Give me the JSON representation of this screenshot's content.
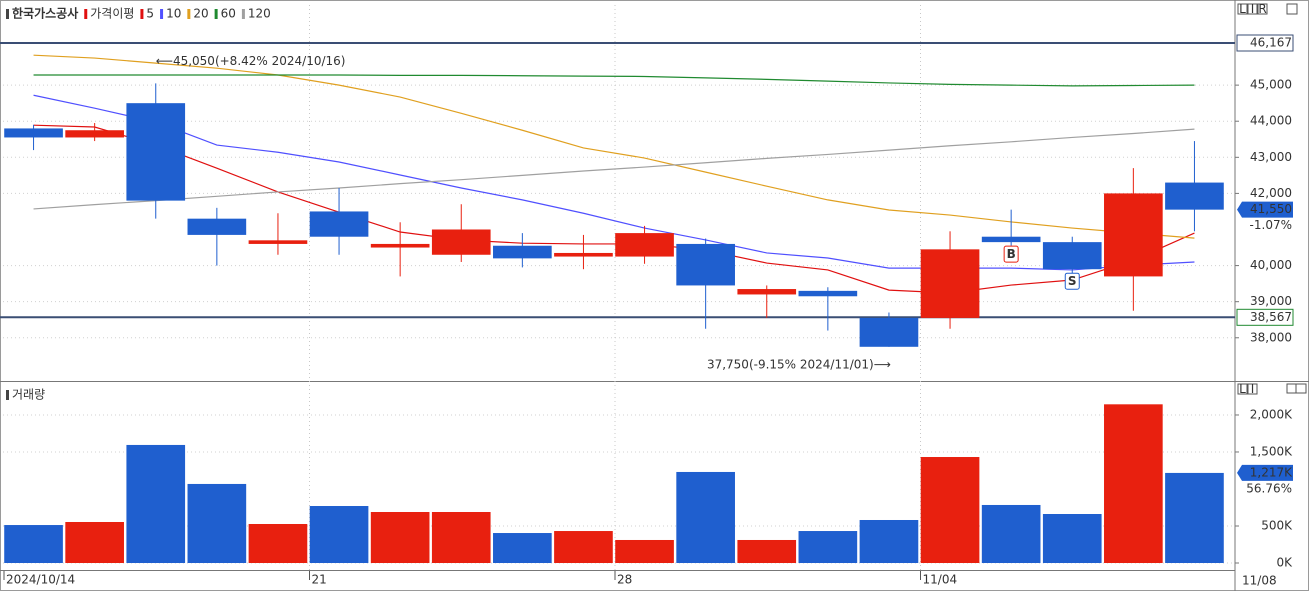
{
  "chart_data": [
    {
      "type": "candlestick",
      "title": "한국가스공사",
      "ma_label": "가격이평",
      "categories": [
        "2024/10/14",
        null,
        null,
        null,
        null,
        "21",
        null,
        null,
        null,
        null,
        "28",
        null,
        null,
        null,
        null,
        "11/04",
        null,
        null,
        null,
        null
      ],
      "last_date_label": "11/08",
      "open": [
        43800,
        43550,
        44500,
        41300,
        40600,
        41500,
        40500,
        40300,
        40550,
        40250,
        40250,
        40600,
        39200,
        39300,
        38550,
        38550,
        40800,
        40650,
        39700,
        42300
      ],
      "high": [
        43900,
        43950,
        45050,
        41600,
        41450,
        42150,
        41200,
        41700,
        40900,
        40850,
        41100,
        40750,
        39450,
        39400,
        38700,
        40950,
        41550,
        40800,
        42700,
        43450
      ],
      "low": [
        43200,
        43450,
        41300,
        40000,
        40300,
        40300,
        39700,
        40100,
        39950,
        39900,
        40050,
        38250,
        38550,
        38200,
        37750,
        38250,
        40550,
        39350,
        38750,
        40950
      ],
      "close": [
        43550,
        43750,
        41800,
        40850,
        40700,
        40800,
        40600,
        41000,
        40200,
        40350,
        40900,
        39450,
        39350,
        39150,
        37750,
        40450,
        40650,
        39900,
        42000,
        41550
      ],
      "up_color": "#e8200f",
      "down_color": "#1f5fcf",
      "series": [
        {
          "name": "5",
          "color": "#e01010",
          "values": [
            43890,
            43840,
            43340,
            42700,
            42040,
            41480,
            40930,
            40710,
            40620,
            40600,
            40600,
            40430,
            40070,
            39880,
            39320,
            39240,
            39460,
            39600,
            40150,
            40900
          ]
        },
        {
          "name": "10",
          "color": "#5050ff",
          "values": [
            44720,
            44360,
            43980,
            43340,
            43140,
            42870,
            42510,
            42150,
            41820,
            41450,
            41040,
            40710,
            40350,
            40210,
            39930,
            39930,
            39930,
            39880,
            40010,
            40100
          ]
        },
        {
          "name": "20",
          "color": "#e0a020",
          "values": [
            45830,
            45750,
            45610,
            45470,
            45280,
            45000,
            44670,
            44220,
            43750,
            43260,
            42980,
            42590,
            42200,
            41820,
            41540,
            41400,
            41210,
            41040,
            40900,
            40760
          ]
        },
        {
          "name": "60",
          "color": "#208a30",
          "values": [
            45280,
            45280,
            45280,
            45280,
            45280,
            45280,
            45270,
            45270,
            45260,
            45250,
            45240,
            45200,
            45160,
            45110,
            45060,
            45020,
            45000,
            44980,
            44990,
            45000
          ]
        },
        {
          "name": "120",
          "color": "#a0a0a0",
          "values": [
            41570,
            41690,
            41800,
            41920,
            42040,
            42150,
            42270,
            42380,
            42500,
            42620,
            42730,
            42850,
            42970,
            43080,
            43200,
            43320,
            43430,
            43550,
            43660,
            43780
          ]
        }
      ],
      "signals": [
        null,
        null,
        null,
        null,
        null,
        null,
        null,
        null,
        null,
        null,
        null,
        null,
        null,
        null,
        null,
        null,
        "B",
        "S",
        null,
        null
      ],
      "ylim": [
        36830,
        47220
      ],
      "yticks": [
        {
          "value": 45000,
          "label": "45,000"
        },
        {
          "value": 44000,
          "label": "44,000"
        },
        {
          "value": 43000,
          "label": "43,000"
        },
        {
          "value": 42000,
          "label": "42,000"
        },
        {
          "value": 40000,
          "label": "40,000"
        },
        {
          "value": 39000,
          "label": "39,000"
        },
        {
          "value": 38000,
          "label": "38,000"
        }
      ],
      "grid": true,
      "hlines": [
        {
          "value": 46167,
          "label": "46,167"
        },
        {
          "value": 38567,
          "label": "38,567"
        }
      ],
      "last_label": {
        "value": 41550,
        "label": "41,550"
      },
      "change_label": "-1.07%",
      "annotations": [
        {
          "value": 45050,
          "text": "⟵45,050(+8.42% 2024/10/16)",
          "side": "high"
        },
        {
          "value": 37750,
          "text": "37,750(-9.15% 2024/11/01)⟶",
          "side": "low"
        }
      ],
      "controls": [
        "L",
        "I",
        "R"
      ]
    },
    {
      "type": "bar",
      "title": "거래량",
      "values": [
        513000,
        554000,
        1595000,
        1068000,
        527000,
        770000,
        689000,
        689000,
        405000,
        432000,
        311000,
        1230000,
        311000,
        432000,
        581000,
        1432000,
        784000,
        662000,
        2144000,
        1217000
      ],
      "ylim": [
        0,
        2405000
      ],
      "yticks": [
        {
          "value": 0,
          "label": "0K"
        },
        {
          "value": 500000,
          "label": "500K"
        },
        {
          "value": 1500000,
          "label": "1,500K"
        },
        {
          "value": 2000000,
          "label": "2,000K"
        }
      ],
      "last_label": {
        "value": 1217000,
        "label": "1,217K"
      },
      "ratio_label": "56.76%",
      "controls": [
        "L",
        "I"
      ]
    }
  ]
}
